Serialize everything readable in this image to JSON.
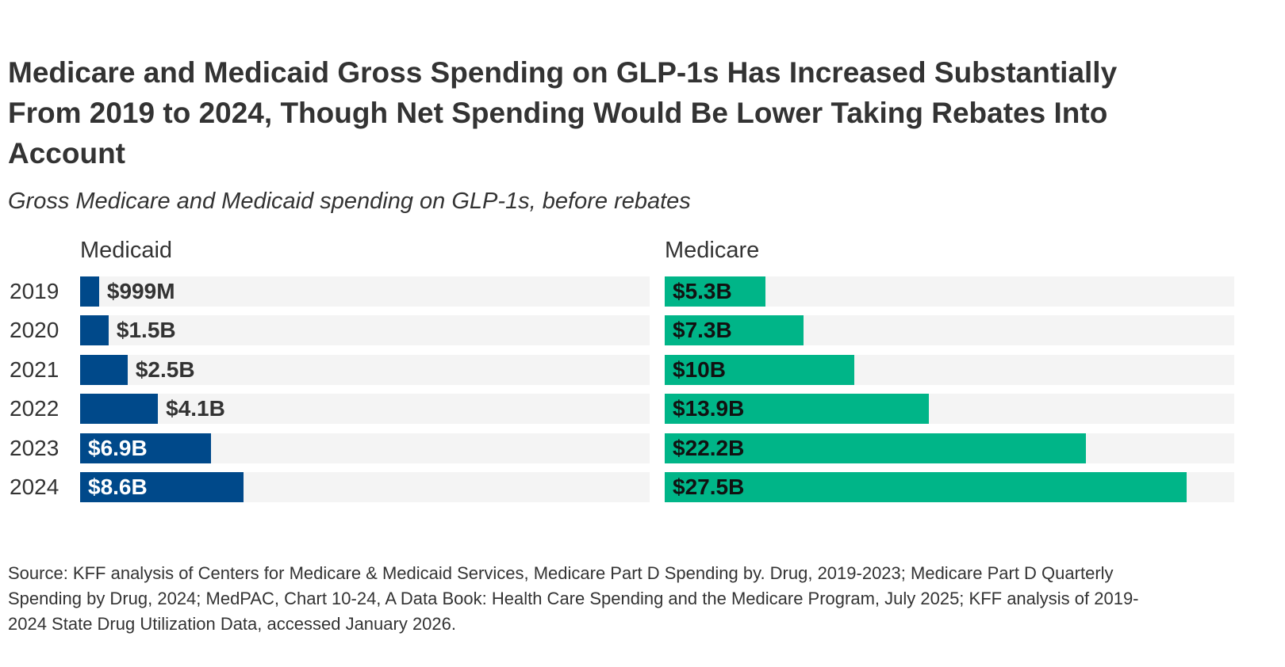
{
  "title": "Medicare and Medicaid Gross Spending on GLP-1s Has Increased Substantially From 2019 to 2024, Though Net Spending Would Be Lower Taking Rebates Into Account",
  "subtitle": "Gross Medicare and Medicaid spending on GLP-1s, before rebates",
  "source": "Source: KFF analysis of Centers for Medicare & Medicaid Services, Medicare Part D Spending by. Drug, 2019-2023; Medicare Part D Quarterly Spending by Drug, 2024; MedPAC, Chart 10-24, A Data Book: Health Care Spending and the Medicare Program, July 2025; KFF analysis of 2019-2024 State Drug Utilization Data, accessed January 2026.",
  "chart_data": {
    "type": "bar",
    "orientation": "horizontal",
    "categories": [
      "2019",
      "2020",
      "2021",
      "2022",
      "2023",
      "2024"
    ],
    "xlim": [
      0,
      30
    ],
    "unit": "billions USD",
    "grid": false,
    "panels": [
      {
        "title": "Medicaid",
        "color": "#00498a",
        "values": [
          0.999,
          1.5,
          2.5,
          4.1,
          6.9,
          8.6
        ],
        "labels": [
          "$999M",
          "$1.5B",
          "$2.5B",
          "$4.1B",
          "$6.9B",
          "$8.6B"
        ]
      },
      {
        "title": "Medicare",
        "color": "#00b588",
        "values": [
          5.3,
          7.3,
          10,
          13.9,
          22.2,
          27.5
        ],
        "labels": [
          "$5.3B",
          "$7.3B",
          "$10B",
          "$13.9B",
          "$22.2B",
          "$27.5B"
        ]
      }
    ]
  },
  "colors": {
    "track": "#f4f4f4"
  }
}
